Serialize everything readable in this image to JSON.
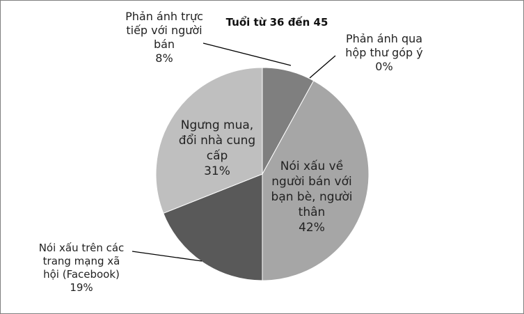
{
  "chart_data": {
    "type": "pie",
    "title": "Tuổi từ 36 đến 45",
    "slices": [
      {
        "label_lines": [
          "Phản ánh trực",
          "tiếp với người",
          "bán"
        ],
        "value_label": "8%",
        "value": 8,
        "color": "#7f7f7f"
      },
      {
        "label_lines": [
          "Phản ánh qua",
          "hộp thư góp ý"
        ],
        "value_label": "0%",
        "value": 0,
        "color": "#7f7f7f"
      },
      {
        "label_lines": [
          "Nói xấu về",
          "người bán với",
          "bạn bè, người",
          "thân"
        ],
        "value_label": "42%",
        "value": 42,
        "color": "#a6a6a6"
      },
      {
        "label_lines": [
          "Nói xấu trên các",
          "trang mạng xã",
          "hội (Facebook)"
        ],
        "value_label": "19%",
        "value": 19,
        "color": "#595959"
      },
      {
        "label_lines": [
          "Ngưng mua,",
          "đổi nhà cung",
          "cấp"
        ],
        "value_label": "31%",
        "value": 31,
        "color": "#bfbfbf"
      }
    ]
  }
}
